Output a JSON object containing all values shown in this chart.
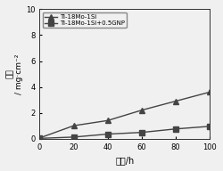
{
  "series1_label": "Ti-18Mo-1Si",
  "series1_x": [
    0,
    20,
    40,
    60,
    80,
    100
  ],
  "series1_y": [
    0.05,
    1.0,
    1.4,
    2.2,
    2.9,
    3.6
  ],
  "series1_marker": "^",
  "series1_color": "#444444",
  "series2_label": "Ti-18Mo-1Si+0.5GNP",
  "series2_x": [
    0,
    20,
    40,
    60,
    80,
    100
  ],
  "series2_y": [
    0.02,
    0.12,
    0.35,
    0.48,
    0.75,
    0.95
  ],
  "series2_marker": "s",
  "series2_color": "#444444",
  "xlabel": "时间/h",
  "ylabel_line1": "减重",
  "ylabel_line2": "/ mg·cm⁻²",
  "xlim": [
    0,
    100
  ],
  "ylim": [
    0,
    10
  ],
  "xticks": [
    0,
    20,
    40,
    60,
    80,
    100
  ],
  "yticks": [
    0,
    2,
    4,
    6,
    8,
    10
  ],
  "background_color": "#f0f0f0",
  "linewidth": 1.0,
  "markersize": 4
}
